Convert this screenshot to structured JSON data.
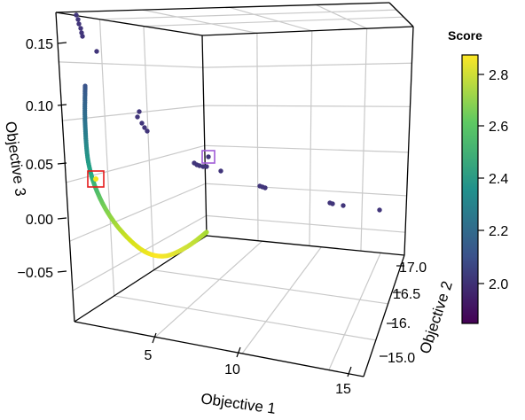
{
  "chart_data": {
    "type": "scatter",
    "projection": "3d",
    "xlabel": "Objective 1",
    "ylabel": "Objective 2",
    "zlabel": "Objective 3",
    "x_ticks": [
      "5",
      "10",
      "15"
    ],
    "y_ticks": [
      "15.0",
      "16.",
      "16.5",
      "17.0"
    ],
    "z_ticks": [
      "0.15",
      "0.10",
      "0.05",
      "0.00",
      "−0.05"
    ],
    "colorbar": {
      "title": "Score",
      "ticks": [
        "2.8",
        "2.6",
        "2.4",
        "2.2",
        "2.0"
      ],
      "range": [
        1.85,
        2.87
      ],
      "colormap": [
        "#440154",
        "#3b528b",
        "#21918c",
        "#5ec962",
        "#fde725"
      ]
    },
    "grid": true,
    "front_curve_color_range": [
      "#2f6d8e",
      "#fde725"
    ],
    "outlier_cluster_color": "#41357a",
    "highlights": [
      {
        "marker": "square",
        "color": "#e41a1c"
      },
      {
        "marker": "square",
        "color": "#a05bd6"
      }
    ]
  }
}
